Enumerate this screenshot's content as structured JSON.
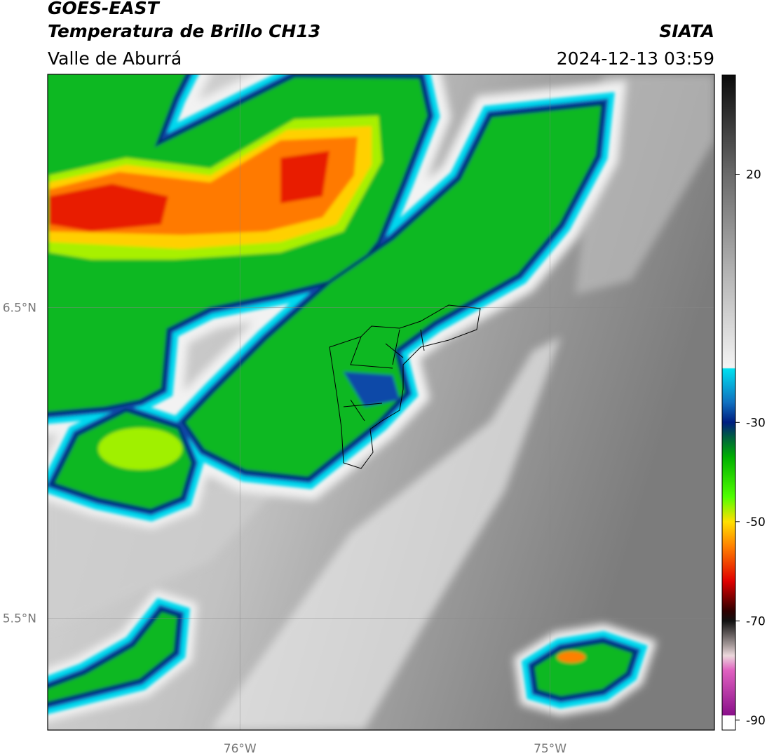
{
  "header": {
    "title": "GOES-EAST",
    "subtitle": "Temperatura de Brillo CH13",
    "region": "Valle de Aburrá",
    "source": "SIATA",
    "datetime": "2024-12-13 03:59"
  },
  "map": {
    "xlim": [
      -76.62,
      -74.47
    ],
    "ylim": [
      5.14,
      7.25
    ],
    "xticks": [
      {
        "value": -76,
        "label": "76°W"
      },
      {
        "value": -75,
        "label": "75°W"
      }
    ],
    "yticks": [
      {
        "value": 6.5,
        "label": "6.5°N"
      },
      {
        "value": 5.5,
        "label": "5.5°N"
      }
    ],
    "grid": true
  },
  "colorbar": {
    "lim": [
      -92,
      40
    ],
    "ticks": [
      20,
      -30,
      -50,
      -70,
      -90
    ],
    "colors": [
      {
        "value": 40,
        "color": "#0a0a0a"
      },
      {
        "value": 30,
        "color": "#3a3a3a"
      },
      {
        "value": 20,
        "color": "#6a6a6a"
      },
      {
        "value": 0,
        "color": "#b4b4b4"
      },
      {
        "value": -19,
        "color": "#f4f4f4"
      },
      {
        "value": -19.2,
        "color": "#00e0f0"
      },
      {
        "value": -26,
        "color": "#1070c0"
      },
      {
        "value": -30,
        "color": "#001e80"
      },
      {
        "value": -33,
        "color": "#006040"
      },
      {
        "value": -37,
        "color": "#00b000"
      },
      {
        "value": -45,
        "color": "#50ff00"
      },
      {
        "value": -50,
        "color": "#ffe000"
      },
      {
        "value": -55,
        "color": "#ff8000"
      },
      {
        "value": -62,
        "color": "#e00000"
      },
      {
        "value": -68,
        "color": "#300000"
      },
      {
        "value": -70,
        "color": "#111111"
      },
      {
        "value": -75,
        "color": "#a89c9c"
      },
      {
        "value": -77,
        "color": "#ecd8dc"
      },
      {
        "value": -80,
        "color": "#e060c0"
      },
      {
        "value": -89,
        "color": "#8a108a"
      },
      {
        "value": -89.1,
        "color": "#ffffff"
      },
      {
        "value": -92,
        "color": "#ffffff"
      }
    ]
  }
}
